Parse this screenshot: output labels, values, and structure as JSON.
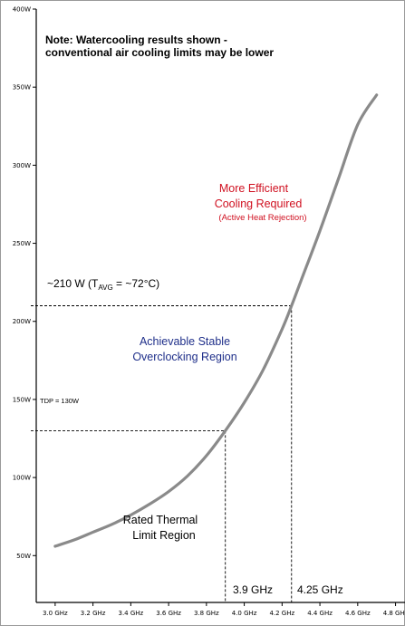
{
  "chart_data": {
    "type": "line",
    "title": "",
    "xlabel": "",
    "ylabel": "",
    "xlim": [
      2.9,
      4.85
    ],
    "ylim": [
      20,
      400
    ],
    "x_ticks": [
      "3.0 GHz",
      "3.2 GHz",
      "3.4 GHz",
      "3.6 GHz",
      "3.8 GHz",
      "4.0 GHz",
      "4.2 GHz",
      "4.4 GHz",
      "4.6 GHz",
      "4.8 GHz"
    ],
    "y_ticks": [
      "50W",
      "100W",
      "150W",
      "200W",
      "250W",
      "300W",
      "350W",
      "400W"
    ],
    "series": [
      {
        "color": "#8a8a8a",
        "x": [
          3.0,
          3.1,
          3.2,
          3.3,
          3.4,
          3.5,
          3.6,
          3.7,
          3.8,
          3.9,
          4.0,
          4.1,
          4.2,
          4.25,
          4.3,
          4.4,
          4.5,
          4.6,
          4.7
        ],
        "y": [
          56,
          60,
          65,
          70,
          76,
          83,
          91,
          101,
          114,
          130,
          148,
          169,
          195,
          210,
          226,
          258,
          292,
          326,
          345
        ]
      }
    ],
    "reference_lines": [
      {
        "y": 130,
        "x": 3.9,
        "label": "TDP = 130W"
      },
      {
        "y": 210,
        "x": 4.25
      }
    ],
    "annotations": {
      "note_line1": "Note: Watercooling results shown -",
      "note_line2": "conventional air cooling limits may be lower",
      "efficient_line1": "More Efficient",
      "efficient_line2": "Cooling Required",
      "efficient_line3": "(Active Heat Rejection)",
      "achievable_line1": "Achievable Stable",
      "achievable_line2": "Overclocking Region",
      "rated_line1": "Rated Thermal",
      "rated_line2": "Limit Region",
      "tavg_prefix": "~210 W (T",
      "tavg_sub": "AVG",
      "tavg_suffix": " = ~72°C)",
      "tdp_label": "TDP = 130W",
      "freq_marker_1": "3.9 GHz",
      "freq_marker_2": "4.25 GHz"
    }
  }
}
